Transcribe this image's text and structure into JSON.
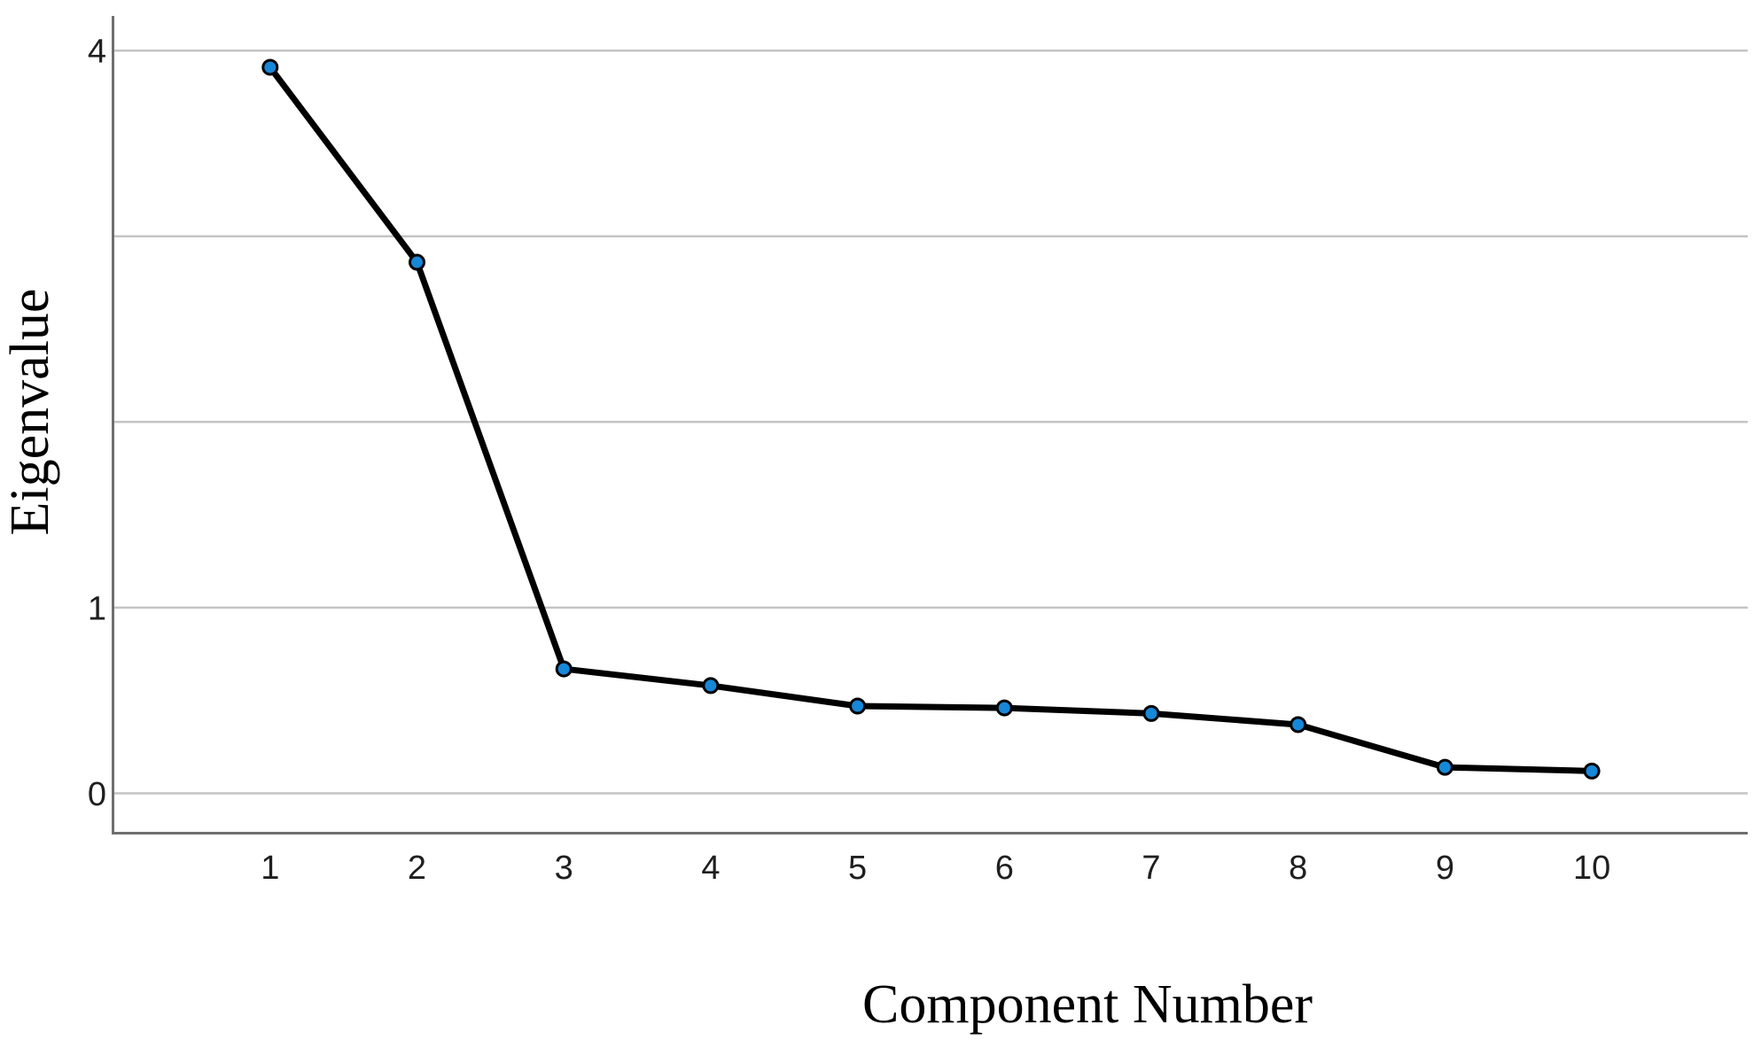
{
  "figure": {
    "background": "#ffffff"
  },
  "chart_data": {
    "type": "line",
    "title": "",
    "xlabel": "Component Number",
    "ylabel": "Eigenvalue",
    "x": [
      1,
      2,
      3,
      4,
      5,
      6,
      7,
      8,
      9,
      10
    ],
    "x_tick_labels": [
      "1",
      "2",
      "3",
      "4",
      "5",
      "6",
      "7",
      "8",
      "9",
      "10"
    ],
    "series": [
      {
        "name": "Eigenvalue",
        "values": [
          3.91,
          2.86,
          0.67,
          0.58,
          0.47,
          0.46,
          0.43,
          0.37,
          0.14,
          0.12
        ]
      }
    ],
    "y_gridline_values": [
      0,
      1,
      2,
      3,
      4
    ],
    "y_tick_labels": [
      {
        "label": "4",
        "value": 4
      },
      {
        "label": "1",
        "value": 1
      },
      {
        "label": "0",
        "value": 0
      }
    ],
    "ylim": [
      -0.22,
      4.19
    ],
    "grid": "horizontal-only",
    "legend": "none",
    "colors": {
      "marker_fill": "#1787d8",
      "marker_outline": "#000000",
      "line": "#000000",
      "gridline": "#c4c4c4",
      "axis_line": "#6f6f6f",
      "tick_label": "#1f1f1f"
    }
  }
}
